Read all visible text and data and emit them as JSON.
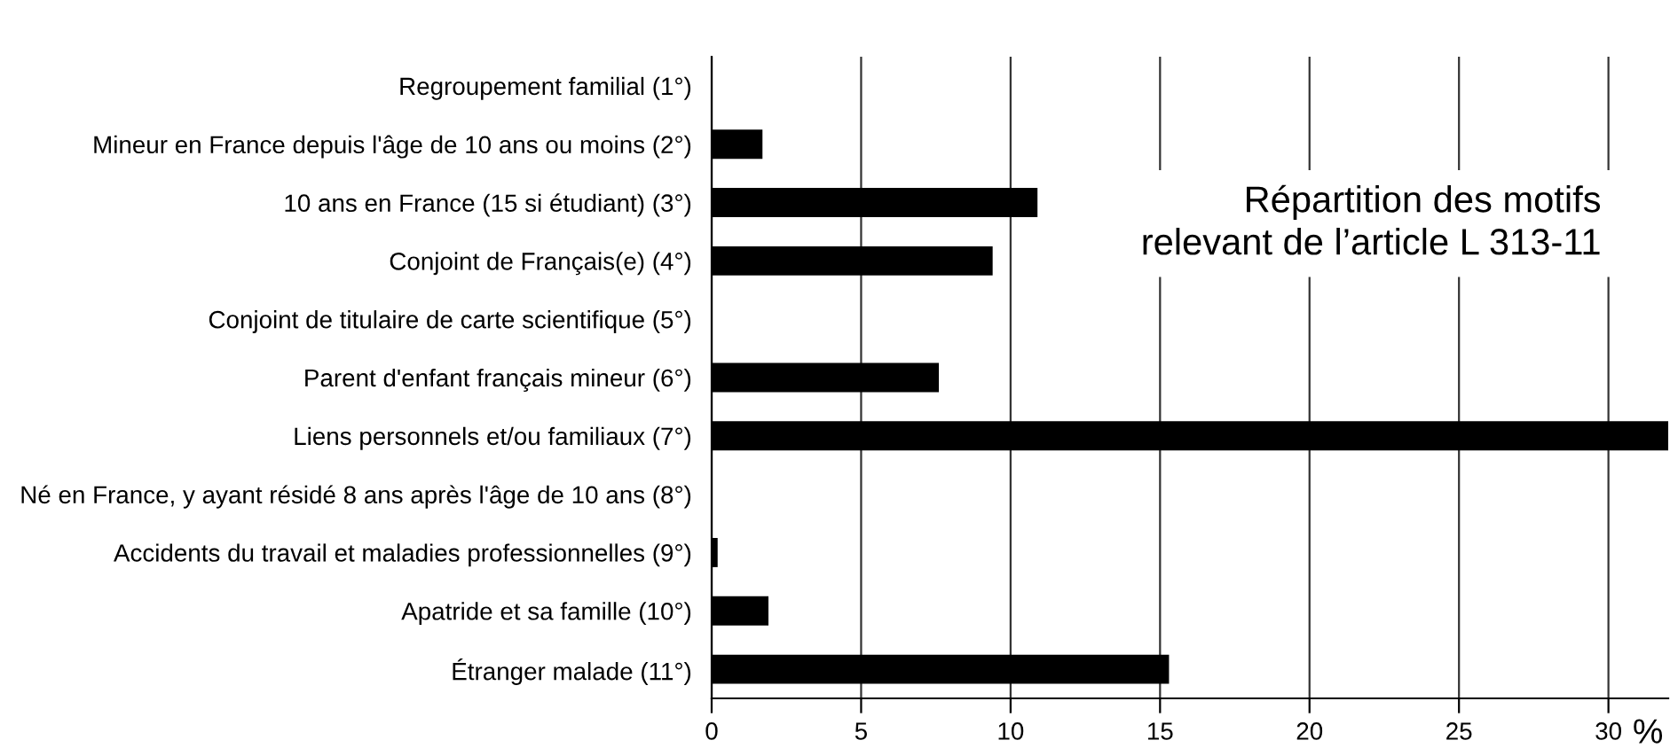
{
  "chart_data": {
    "type": "bar",
    "orientation": "horizontal",
    "title": "Répartition des motifs\nrelevant de l’article L 313-11",
    "xlabel": "%",
    "categories": [
      "Regroupement familial (1°)",
      "Mineur en France depuis l'âge de 10 ans ou moins (2°)",
      "10 ans en France (15 si étudiant) (3°)",
      "Conjoint de Français(e) (4°)",
      "Conjoint de titulaire de carte scientifique (5°)",
      "Parent d'enfant français mineur (6°)",
      "Liens personnels et/ou familiaux (7°)",
      "Né en France, y ayant résidé 8 ans après l'âge de 10 ans (8°)",
      "Accidents du travail et maladies professionnelles (9°)",
      "Apatride et sa famille (10°)",
      "Étranger malade (11°)"
    ],
    "values": [
      0,
      1.7,
      10.9,
      9.4,
      0,
      7.6,
      32,
      0,
      0.2,
      1.9,
      15.3
    ],
    "color": "#000000",
    "xlim": [
      0,
      32
    ],
    "xticks": [
      0,
      5,
      10,
      15,
      20,
      25,
      30
    ],
    "grid": "x",
    "legend": false
  }
}
